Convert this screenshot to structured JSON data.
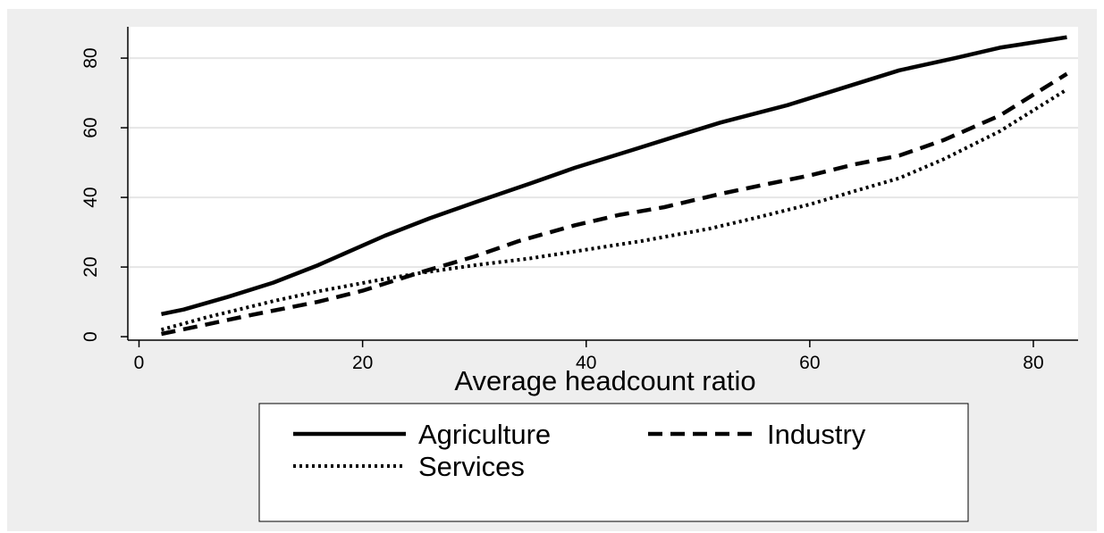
{
  "chart_data": {
    "type": "line",
    "title": "",
    "xlabel": "Average headcount ratio",
    "ylabel": "",
    "xlim": [
      -1,
      84
    ],
    "ylim": [
      -1,
      89
    ],
    "xticks": [
      0,
      20,
      40,
      60,
      80
    ],
    "yticks": [
      0,
      20,
      40,
      60,
      80
    ],
    "grid": "horizontal",
    "legend_position": "bottom",
    "series": [
      {
        "name": "Agriculture",
        "dash": "solid",
        "points": [
          [
            2,
            6.5
          ],
          [
            4,
            7.8
          ],
          [
            8,
            11.5
          ],
          [
            12,
            15.5
          ],
          [
            16,
            20.5
          ],
          [
            22,
            29
          ],
          [
            26,
            34
          ],
          [
            30,
            38.5
          ],
          [
            35,
            44
          ],
          [
            39,
            48.5
          ],
          [
            44,
            53.5
          ],
          [
            48,
            57.5
          ],
          [
            52,
            61.5
          ],
          [
            58,
            66.5
          ],
          [
            63,
            71.5
          ],
          [
            68,
            76.5
          ],
          [
            73,
            80
          ],
          [
            77,
            83
          ],
          [
            83,
            86
          ]
        ]
      },
      {
        "name": "Industry",
        "dash": "dashed",
        "points": [
          [
            2,
            0.8
          ],
          [
            5,
            2.8
          ],
          [
            10,
            6.2
          ],
          [
            16,
            10
          ],
          [
            20,
            13.2
          ],
          [
            25,
            18.3
          ],
          [
            30,
            23
          ],
          [
            34,
            27.5
          ],
          [
            39,
            32
          ],
          [
            43,
            35
          ],
          [
            47,
            37.2
          ],
          [
            52,
            41
          ],
          [
            56,
            43.7
          ],
          [
            60,
            46.3
          ],
          [
            64,
            49.5
          ],
          [
            68,
            52
          ],
          [
            72,
            56.5
          ],
          [
            77,
            63.5
          ],
          [
            83,
            75.5
          ]
        ]
      },
      {
        "name": "Services",
        "dash": "dotted",
        "points": [
          [
            2,
            2
          ],
          [
            6,
            5.5
          ],
          [
            12,
            10.2
          ],
          [
            16,
            13
          ],
          [
            21,
            16
          ],
          [
            25,
            18.2
          ],
          [
            30,
            20.5
          ],
          [
            35,
            22.5
          ],
          [
            39,
            24.5
          ],
          [
            45,
            27.5
          ],
          [
            51,
            31
          ],
          [
            55,
            34
          ],
          [
            60,
            38
          ],
          [
            64,
            41.8
          ],
          [
            68,
            45.5
          ],
          [
            72,
            51
          ],
          [
            77,
            59
          ],
          [
            83,
            71
          ]
        ]
      }
    ]
  }
}
